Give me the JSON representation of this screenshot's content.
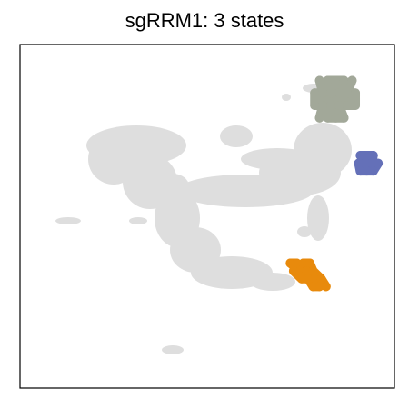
{
  "chart_data": {
    "type": "scatter",
    "title": "sgRRM1: 3 states",
    "xlabel": "",
    "ylabel": "",
    "ticks_shown": false,
    "colors": {
      "background_cells": "#dedede",
      "frame": "#000000"
    },
    "series": [
      {
        "color": "#a2a899",
        "points": [
          [
            0.79,
            0.82
          ],
          [
            0.84,
            0.82
          ],
          [
            0.89,
            0.82
          ],
          [
            0.94,
            0.82
          ],
          [
            0.99,
            0.82
          ],
          [
            0.76,
            0.74
          ],
          [
            0.81,
            0.74
          ],
          [
            0.86,
            0.74
          ],
          [
            0.91,
            0.74
          ],
          [
            0.96,
            0.74
          ],
          [
            1.01,
            0.74
          ],
          [
            0.76,
            0.66
          ],
          [
            0.81,
            0.66
          ],
          [
            0.86,
            0.66
          ],
          [
            0.91,
            0.66
          ],
          [
            0.96,
            0.66
          ],
          [
            1.01,
            0.66
          ],
          [
            0.79,
            0.58
          ],
          [
            0.84,
            0.58
          ],
          [
            0.89,
            0.58
          ],
          [
            0.94,
            0.58
          ]
        ]
      },
      {
        "color": "#6470b8",
        "points": [
          [
            1.04,
            0.34
          ],
          [
            1.08,
            0.34
          ],
          [
            1.12,
            0.34
          ],
          [
            1.03,
            0.29
          ],
          [
            1.07,
            0.29
          ],
          [
            1.11,
            0.29
          ],
          [
            1.15,
            0.29
          ],
          [
            1.04,
            0.24
          ],
          [
            1.08,
            0.24
          ],
          [
            1.12,
            0.24
          ]
        ]
      },
      {
        "color": "#e88a0c",
        "points": [
          [
            0.61,
            -0.35
          ],
          [
            0.65,
            -0.35
          ],
          [
            0.69,
            -0.35
          ],
          [
            0.73,
            -0.35
          ],
          [
            0.63,
            -0.4
          ],
          [
            0.67,
            -0.4
          ],
          [
            0.71,
            -0.4
          ],
          [
            0.75,
            -0.4
          ],
          [
            0.68,
            -0.45
          ],
          [
            0.72,
            -0.45
          ],
          [
            0.76,
            -0.45
          ],
          [
            0.8,
            -0.45
          ],
          [
            0.75,
            -0.5
          ],
          [
            0.79,
            -0.5
          ],
          [
            0.83,
            -0.5
          ]
        ]
      }
    ]
  }
}
